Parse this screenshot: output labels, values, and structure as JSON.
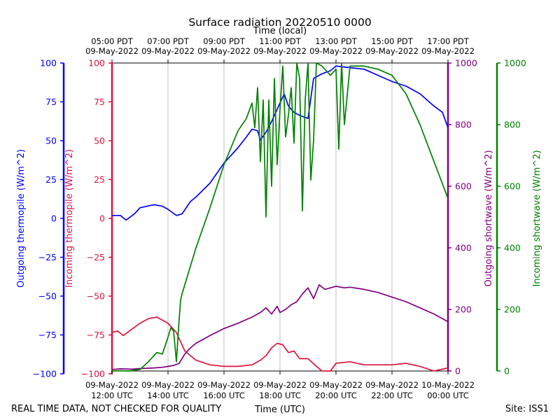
{
  "chart_data": {
    "type": "line",
    "title": "Surface radiation 20220510 0000",
    "top_axis_label": "Time (local)",
    "xlabel": "Time (UTC)",
    "footer_left": "REAL TIME DATA, NOT CHECKED FOR QUALITY",
    "footer_right": "Site: ISS1",
    "x_range_utc_hours": [
      12,
      24
    ],
    "bottom_ticks": [
      {
        "hour": 12,
        "line1": "09-May-2022",
        "line2": "12:00 UTC"
      },
      {
        "hour": 14,
        "line1": "09-May-2022",
        "line2": "14:00 UTC"
      },
      {
        "hour": 16,
        "line1": "09-May-2022",
        "line2": "16:00 UTC"
      },
      {
        "hour": 18,
        "line1": "09-May-2022",
        "line2": "18:00 UTC"
      },
      {
        "hour": 20,
        "line1": "09-May-2022",
        "line2": "20:00 UTC"
      },
      {
        "hour": 22,
        "line1": "09-May-2022",
        "line2": "22:00 UTC"
      },
      {
        "hour": 24,
        "line1": "10-May-2022",
        "line2": "00:00 UTC"
      }
    ],
    "top_ticks": [
      {
        "hour": 12,
        "line1": "05:00 PDT",
        "line2": "09-May-2022"
      },
      {
        "hour": 14,
        "line1": "07:00 PDT",
        "line2": "09-May-2022"
      },
      {
        "hour": 16,
        "line1": "09:00 PDT",
        "line2": "09-May-2022"
      },
      {
        "hour": 18,
        "line1": "11:00 PDT",
        "line2": "09-May-2022"
      },
      {
        "hour": 20,
        "line1": "13:00 PDT",
        "line2": "09-May-2022"
      },
      {
        "hour": 22,
        "line1": "15:00 PDT",
        "line2": "09-May-2022"
      },
      {
        "hour": 24,
        "line1": "17:00 PDT",
        "line2": "09-May-2022"
      }
    ],
    "axes": [
      {
        "id": "outgoing_thermopile",
        "label": "Outgoing thermopile (W/m^2)",
        "color": "#0000ff",
        "ylim": [
          -100,
          100
        ],
        "ticks": [
          "100",
          "75",
          "50",
          "25",
          "0",
          "−25",
          "−50",
          "−75",
          "−100"
        ]
      },
      {
        "id": "incoming_thermopile",
        "label": "Incoming thermopile (W/m^2)",
        "color": "#dc143c",
        "ylim": [
          -100,
          100
        ],
        "ticks": [
          "100",
          "75",
          "50",
          "25",
          "0",
          "−25",
          "−50",
          "−75",
          "−100"
        ]
      },
      {
        "id": "outgoing_shortwave",
        "label": "Outgoing shortwave (W/m^2)",
        "color": "#800080",
        "ylim": [
          0,
          1000
        ],
        "ticks": [
          "1000",
          "800",
          "600",
          "400",
          "200",
          "0"
        ]
      },
      {
        "id": "incoming_shortwave",
        "label": "Incoming shortwave (W/m^2)",
        "color": "#008000",
        "ylim": [
          0,
          1000
        ],
        "ticks": [
          "1000",
          "800",
          "600",
          "400",
          "200",
          "0"
        ]
      }
    ],
    "series": [
      {
        "name": "Outgoing thermopile",
        "axis": "outgoing_thermopile",
        "x": [
          12.0,
          12.3,
          12.5,
          12.8,
          13.0,
          13.5,
          13.8,
          14.0,
          14.3,
          14.5,
          14.8,
          15.0,
          15.5,
          16.0,
          16.5,
          16.8,
          17.0,
          17.2,
          17.3,
          17.5,
          17.7,
          17.9,
          18.0,
          18.15,
          18.3,
          18.5,
          18.7,
          19.0,
          19.2,
          19.5,
          19.8,
          20.0,
          20.5,
          21.0,
          21.5,
          22.0,
          22.5,
          23.0,
          23.5,
          23.8,
          24.0
        ],
        "y": [
          1,
          1,
          -2,
          2,
          6,
          8,
          7,
          5,
          1,
          2,
          10,
          13,
          22,
          35,
          45,
          52,
          57,
          56,
          50,
          55,
          62,
          70,
          74,
          80,
          72,
          68,
          66,
          64,
          90,
          93,
          95,
          98,
          97,
          96,
          92,
          88,
          85,
          80,
          72,
          68,
          58
        ]
      },
      {
        "name": "Incoming thermopile",
        "axis": "incoming_thermopile",
        "x": [
          12.0,
          12.2,
          12.4,
          12.7,
          13.0,
          13.3,
          13.6,
          13.8,
          14.0,
          14.3,
          14.6,
          15.0,
          15.5,
          16.0,
          16.5,
          17.0,
          17.3,
          17.5,
          17.7,
          17.9,
          18.1,
          18.3,
          18.5,
          18.7,
          19.0,
          19.3,
          19.5,
          19.8,
          20.0,
          20.5,
          21.0,
          21.5,
          22.0,
          22.5,
          23.0,
          23.5,
          24.0
        ],
        "y": [
          -75,
          -74,
          -77,
          -73,
          -69,
          -66,
          -65,
          -67,
          -69,
          -75,
          -87,
          -93,
          -96,
          -97,
          -97,
          -96,
          -93,
          -90,
          -85,
          -82,
          -83,
          -88,
          -87,
          -92,
          -92,
          -97,
          -100,
          -100,
          -95,
          -94,
          -96,
          -96,
          -96,
          -95,
          -97,
          -100,
          -98
        ]
      },
      {
        "name": "Outgoing shortwave",
        "axis": "outgoing_shortwave",
        "x": [
          12.0,
          12.3,
          12.7,
          13.0,
          13.5,
          13.8,
          14.0,
          14.2,
          14.4,
          14.6,
          14.8,
          15.0,
          15.5,
          16.0,
          16.5,
          17.0,
          17.3,
          17.5,
          17.7,
          17.9,
          18.0,
          18.2,
          18.4,
          18.6,
          18.8,
          19.0,
          19.2,
          19.4,
          19.6,
          19.8,
          20.0,
          20.3,
          20.5,
          21.0,
          21.5,
          22.0,
          22.5,
          23.0,
          23.5,
          24.0
        ],
        "y": [
          5,
          7,
          6,
          8,
          10,
          12,
          15,
          18,
          25,
          55,
          75,
          90,
          115,
          138,
          155,
          175,
          190,
          205,
          185,
          210,
          190,
          200,
          215,
          225,
          250,
          270,
          235,
          280,
          265,
          270,
          275,
          270,
          272,
          265,
          255,
          240,
          225,
          205,
          185,
          160
        ]
      },
      {
        "name": "Incoming shortwave",
        "axis": "incoming_shortwave",
        "x": [
          12.0,
          12.3,
          12.6,
          13.0,
          13.3,
          13.6,
          13.8,
          14.0,
          14.1,
          14.2,
          14.3,
          14.4,
          14.45,
          14.5,
          15.0,
          15.5,
          16.0,
          16.5,
          16.8,
          17.0,
          17.1,
          17.2,
          17.3,
          17.4,
          17.5,
          17.6,
          17.7,
          17.8,
          17.9,
          18.0,
          18.1,
          18.2,
          18.3,
          18.4,
          18.5,
          18.6,
          18.7,
          18.8,
          18.9,
          19.0,
          19.1,
          19.2,
          19.3,
          19.5,
          19.8,
          20.0,
          20.1,
          20.2,
          20.3,
          20.5,
          21.0,
          21.5,
          22.0,
          22.5,
          23.0,
          23.5,
          24.0
        ],
        "y": [
          0,
          1,
          0,
          5,
          30,
          60,
          55,
          110,
          140,
          130,
          30,
          170,
          230,
          250,
          400,
          530,
          670,
          780,
          820,
          870,
          790,
          920,
          680,
          880,
          500,
          880,
          600,
          950,
          670,
          850,
          990,
          760,
          830,
          920,
          740,
          1000,
          950,
          520,
          880,
          1000,
          620,
          750,
          1000,
          990,
          960,
          980,
          720,
          1000,
          800,
          990,
          990,
          980,
          960,
          900,
          800,
          680,
          560
        ]
      }
    ]
  }
}
